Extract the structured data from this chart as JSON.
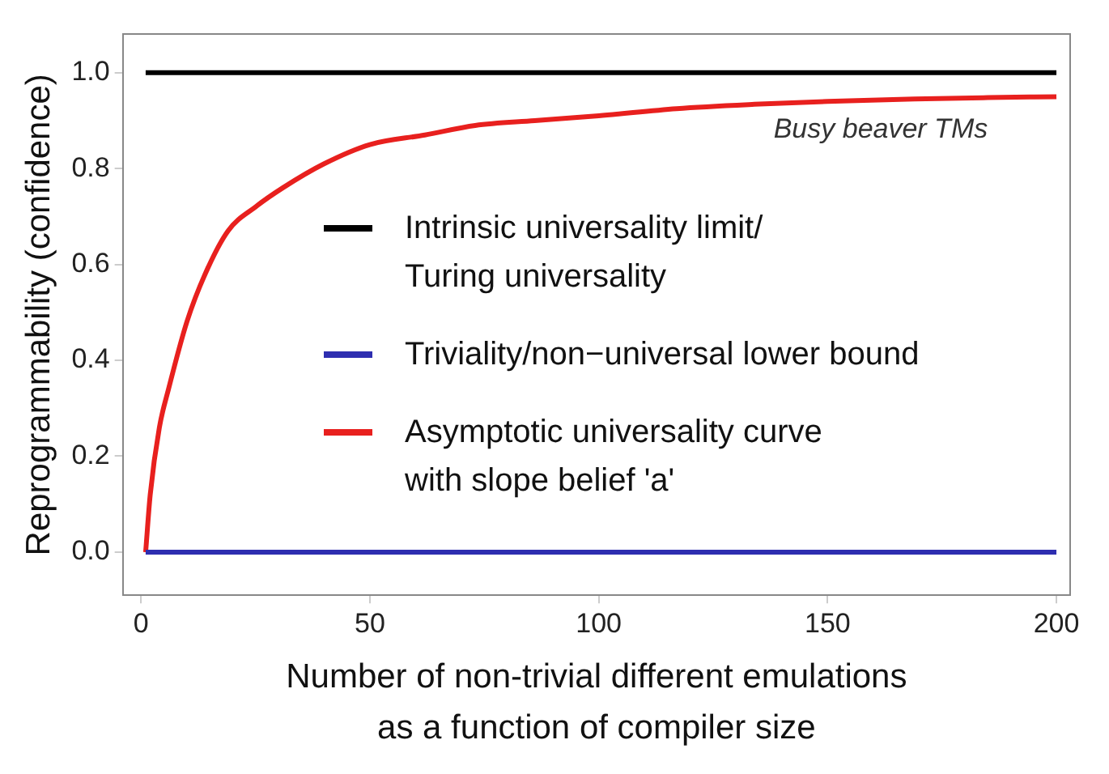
{
  "chart_data": {
    "type": "line",
    "xlabel": "Number of non-trivial different emulations as a function of compiler size",
    "ylabel": "Reprogrammability (confidence)",
    "xlim": [
      -4,
      203
    ],
    "ylim": [
      -0.09,
      1.08
    ],
    "xticks": [
      0,
      50,
      100,
      150,
      200
    ],
    "yticks": [
      {
        "value": 0,
        "label": "0.0"
      },
      {
        "value": 0.2,
        "label": "0.2"
      },
      {
        "value": 0.4,
        "label": "0.4"
      },
      {
        "value": 0.6,
        "label": "0.6"
      },
      {
        "value": 0.8,
        "label": "0.8"
      },
      {
        "value": 1,
        "label": "1.0"
      }
    ],
    "grid": false,
    "legend": "right",
    "marker": "none",
    "line_style": "solid",
    "series": [
      {
        "name": "Intrinsic universality limit/\nTuring universality",
        "color": "#000000",
        "x": [
          1,
          200
        ],
        "values": [
          1,
          1
        ]
      },
      {
        "name": "Triviality/non−universal lower bound",
        "color": "#2e2eb0",
        "x": [
          1,
          200
        ],
        "values": [
          0,
          0
        ]
      },
      {
        "name": "Asymptotic universality curve\nwith slope belief 'a'",
        "color": "#e8201e",
        "x": [
          1,
          2,
          4,
          6,
          10,
          14,
          19,
          25,
          31,
          40,
          50,
          62,
          73,
          86,
          100,
          117,
          134,
          150,
          169,
          185,
          200
        ],
        "values": [
          0,
          0.12,
          0.26,
          0.34,
          0.48,
          0.58,
          0.67,
          0.72,
          0.76,
          0.81,
          0.85,
          0.87,
          0.89,
          0.9,
          0.91,
          0.925,
          0.934,
          0.94,
          0.945,
          0.948,
          0.95
        ]
      }
    ],
    "annotations": [
      "Busy beaver TMs"
    ]
  }
}
